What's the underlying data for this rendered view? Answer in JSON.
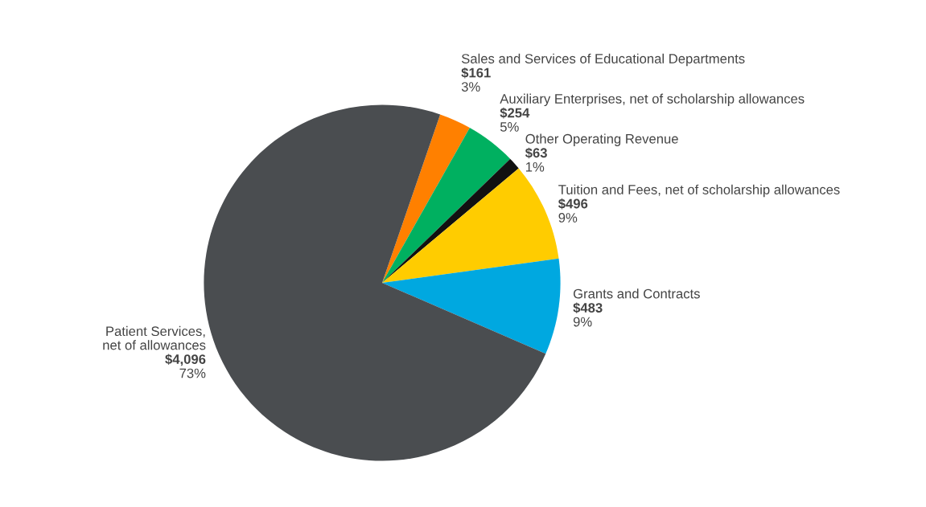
{
  "chart_data": {
    "type": "pie",
    "categories": [
      "Sales and Services of Educational Departments",
      "Auxiliary Enterprises, net of scholarship allowances",
      "Other Operating Revenue",
      "Tuition and Fees, net of scholarship allowances",
      "Grants and Contracts",
      "Patient Services,\nnet of allowances"
    ],
    "values": [
      161,
      254,
      63,
      496,
      483,
      4096
    ],
    "colors": [
      "#ff8000",
      "#00b060",
      "#111111",
      "#ffcc00",
      "#00a8e0",
      "#4a4d50"
    ],
    "value_labels": [
      "$161",
      "$254",
      "$63",
      "$496",
      "$483",
      "$4,096"
    ],
    "annotations": [
      "3%",
      "5%",
      "1%",
      "9%",
      "9%",
      "73%"
    ]
  }
}
